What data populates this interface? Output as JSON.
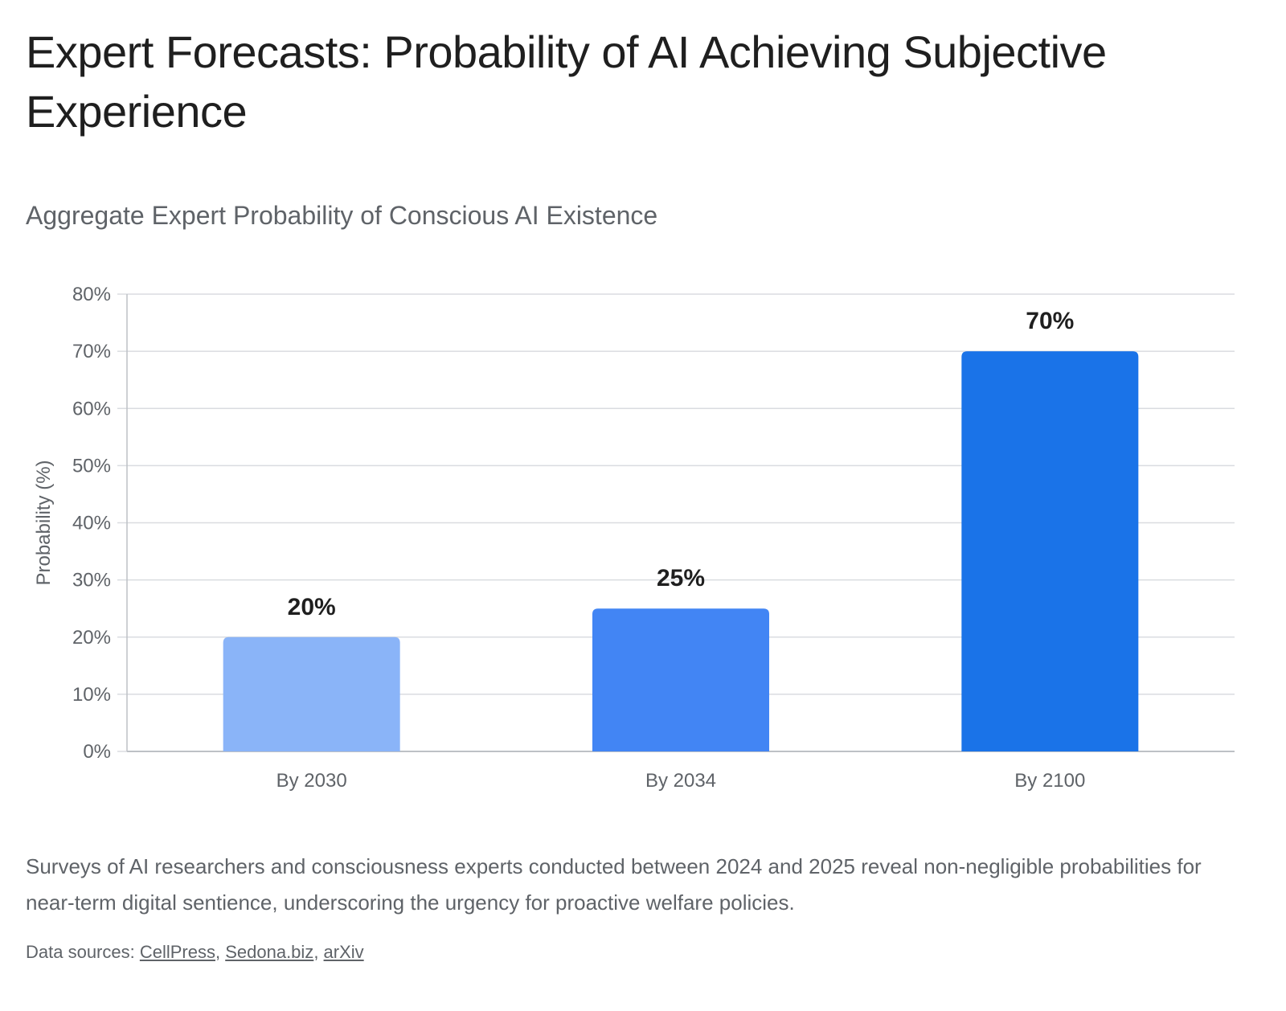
{
  "header": {
    "title": "Expert Forecasts: Probability of AI Achieving Subjective Experience",
    "subtitle": "Aggregate Expert Probability of Conscious AI Existence"
  },
  "chart_data": {
    "type": "bar",
    "categories": [
      "By 2030",
      "By 2034",
      "By 2100"
    ],
    "values": [
      20,
      25,
      70
    ],
    "data_labels": [
      "20%",
      "25%",
      "70%"
    ],
    "bar_colors": [
      "#8ab4f8",
      "#4285f4",
      "#1a73e8"
    ],
    "ylabel": "Probability (%)",
    "xlabel": "",
    "ylim": [
      0,
      80
    ],
    "yticks": [
      0,
      10,
      20,
      30,
      40,
      50,
      60,
      70,
      80
    ],
    "ytick_labels": [
      "0%",
      "10%",
      "20%",
      "30%",
      "40%",
      "50%",
      "60%",
      "70%",
      "80%"
    ],
    "grid": true,
    "legend": "none"
  },
  "footer": {
    "caption": "Surveys of AI researchers and consciousness experts conducted between 2024 and 2025 reveal non-negligible probabilities for near-term digital sentience, underscoring the urgency for proactive welfare policies.",
    "sources_prefix": "Data sources: ",
    "sources": [
      "CellPress",
      "Sedona.biz",
      "arXiv"
    ],
    "separator": ", "
  },
  "colors": {
    "grid": "#dadce0",
    "axis": "#bdc1c6",
    "tick_text": "#5f6368",
    "label_text": "#1f1f1f"
  }
}
